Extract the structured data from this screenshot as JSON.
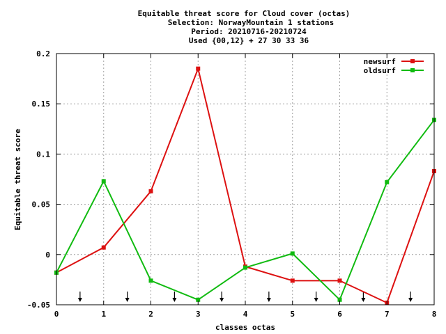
{
  "chart_data": {
    "type": "line",
    "title_lines": [
      "Equitable threat score  for Cloud cover (octas)",
      "Selection: NorwayMountain      1 stations",
      "Period: 20210716-20210724",
      "Used {00,12} + 27 30 33 36"
    ],
    "xlabel": "classes octas",
    "ylabel": "Equitable threat score",
    "xlim": [
      0,
      8
    ],
    "ylim": [
      -0.05,
      0.2
    ],
    "x_ticks": [
      0,
      1,
      2,
      3,
      4,
      5,
      6,
      7,
      8
    ],
    "x_tick_labels": [
      "0",
      "1",
      "2",
      "3",
      "4",
      "5",
      "6",
      "7",
      "8"
    ],
    "y_ticks": [
      -0.05,
      0,
      0.05,
      0.1,
      0.15,
      0.2
    ],
    "y_tick_labels": [
      "-0.05",
      "0",
      "0.05",
      "0.1",
      "0.15",
      "0.2"
    ],
    "grid": true,
    "legend_position": "top-right",
    "arrow_markers_x": [
      0.5,
      1.5,
      2.5,
      3.5,
      4.5,
      5.5,
      6.5,
      7.5
    ],
    "x": [
      0,
      1,
      2,
      3,
      4,
      5,
      6,
      7,
      8
    ],
    "series": [
      {
        "name": "newsurf",
        "color": "#dd1111",
        "values": [
          -0.018,
          0.007,
          0.063,
          0.185,
          -0.012,
          -0.026,
          -0.026,
          -0.048,
          0.083
        ]
      },
      {
        "name": "oldsurf",
        "color": "#11bb11",
        "values": [
          -0.018,
          0.073,
          -0.026,
          -0.045,
          -0.013,
          0.001,
          -0.045,
          0.072,
          0.134
        ]
      }
    ]
  }
}
